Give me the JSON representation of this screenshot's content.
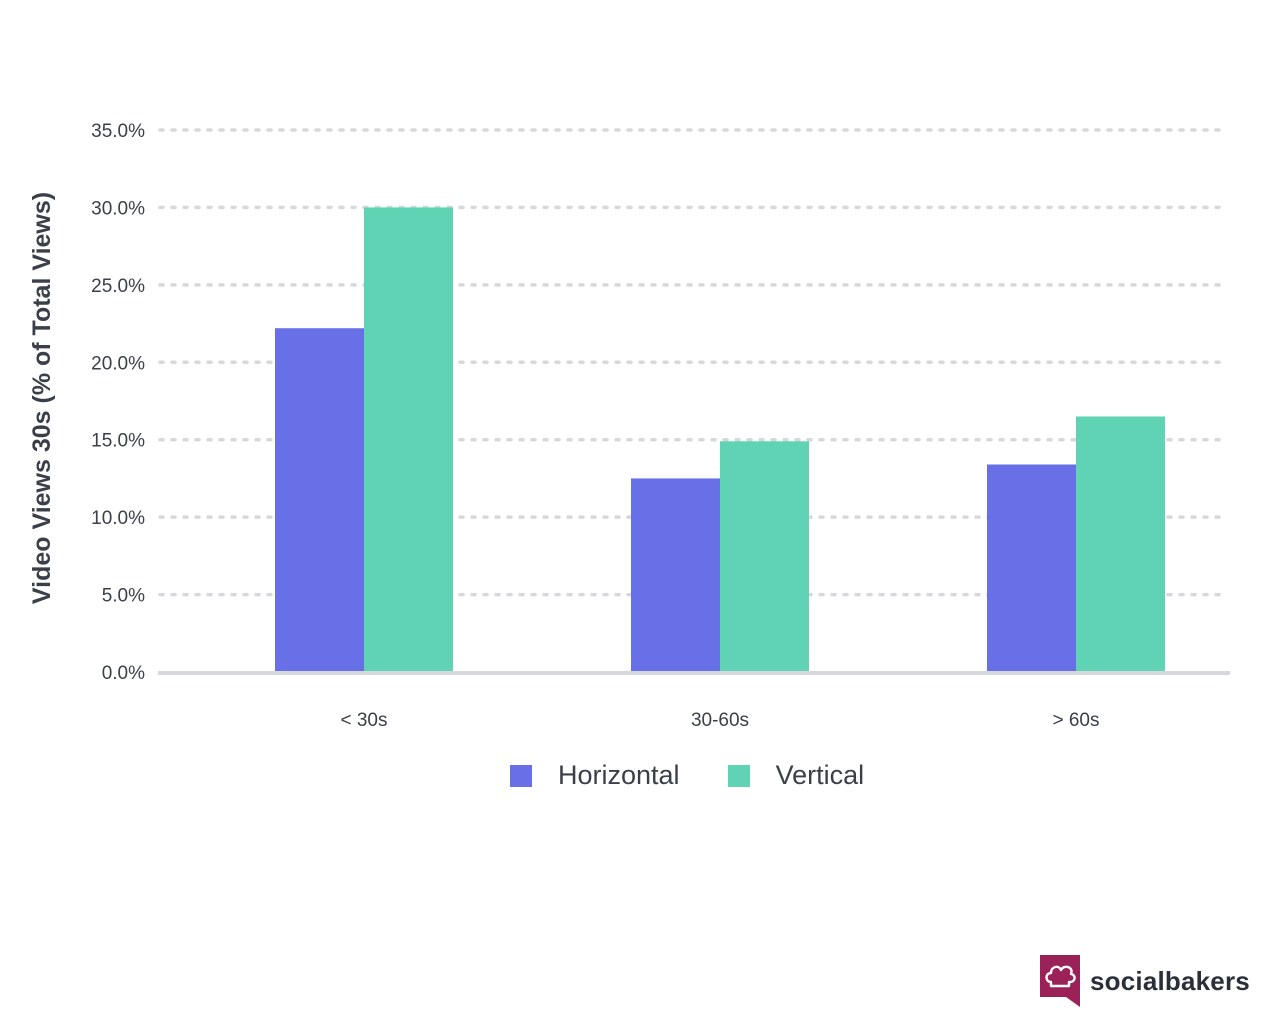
{
  "chart_data": {
    "type": "bar",
    "categories": [
      "< 30s",
      "30-60s",
      "> 60s"
    ],
    "series": [
      {
        "name": "Horizontal",
        "values": [
          22.2,
          12.5,
          13.4
        ],
        "color": "#6770e6"
      },
      {
        "name": "Vertical",
        "values": [
          30.0,
          14.9,
          16.5
        ],
        "color": "#5fd3b3"
      }
    ],
    "ylabel": "Video Views 30s (% of Total Views)",
    "xlabel": "",
    "ylim": [
      0,
      35
    ],
    "yticks": [
      "0.0%",
      "5.0%",
      "10.0%",
      "15.0%",
      "20.0%",
      "25.0%",
      "30.0%",
      "35.0%"
    ],
    "grid": true,
    "legend_position": "bottom-center"
  },
  "brand": {
    "name": "socialbakers",
    "icon": "chef-hat-icon",
    "color": "#9b2258"
  }
}
